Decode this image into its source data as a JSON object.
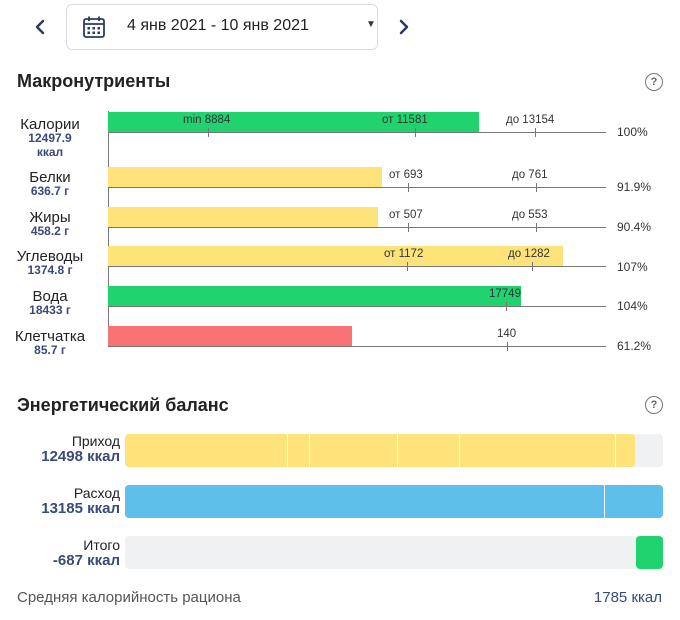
{
  "header": {
    "date_range": "4 янв 2021 - 10 янв 2021"
  },
  "macros": {
    "title": "Макронутриенты",
    "help": "?",
    "rows": [
      {
        "name": "Калории",
        "value": "12497.9",
        "unit": "ккал",
        "percent": "100%",
        "ticks": [
          "min 8884",
          "от 11581",
          "до 13154"
        ]
      },
      {
        "name": "Белки",
        "value": "636.7 г",
        "percent": "91.9%",
        "ticks": [
          "от 693",
          "до 761"
        ]
      },
      {
        "name": "Жиры",
        "value": "458.2 г",
        "percent": "90.4%",
        "ticks": [
          "от 507",
          "до 553"
        ]
      },
      {
        "name": "Углеводы",
        "value": "1374.8 г",
        "percent": "107%",
        "ticks": [
          "от 1172",
          "до 1282"
        ]
      },
      {
        "name": "Вода",
        "value": "18433 г",
        "percent": "104%",
        "ticks": [
          "17749"
        ]
      },
      {
        "name": "Клетчатка",
        "value": "85.7 г",
        "percent": "61.2%",
        "ticks": [
          "140"
        ]
      }
    ]
  },
  "energy": {
    "title": "Энергетический баланс",
    "help": "?",
    "rows": [
      {
        "label": "Приход",
        "value": "12498 ккал"
      },
      {
        "label": "Расход",
        "value": "13185 ккал"
      },
      {
        "label": "Итого",
        "value": "-687 ккал"
      }
    ]
  },
  "footer": {
    "label": "Средняя калорийность рациона",
    "value": "1785 ккал"
  },
  "colors": {
    "green": "#20d36f",
    "yellow": "#fde37a",
    "red": "#f87374",
    "blue": "#5ebfeb",
    "value_text": "#3b4a77",
    "nav": "#2b3a66"
  }
}
